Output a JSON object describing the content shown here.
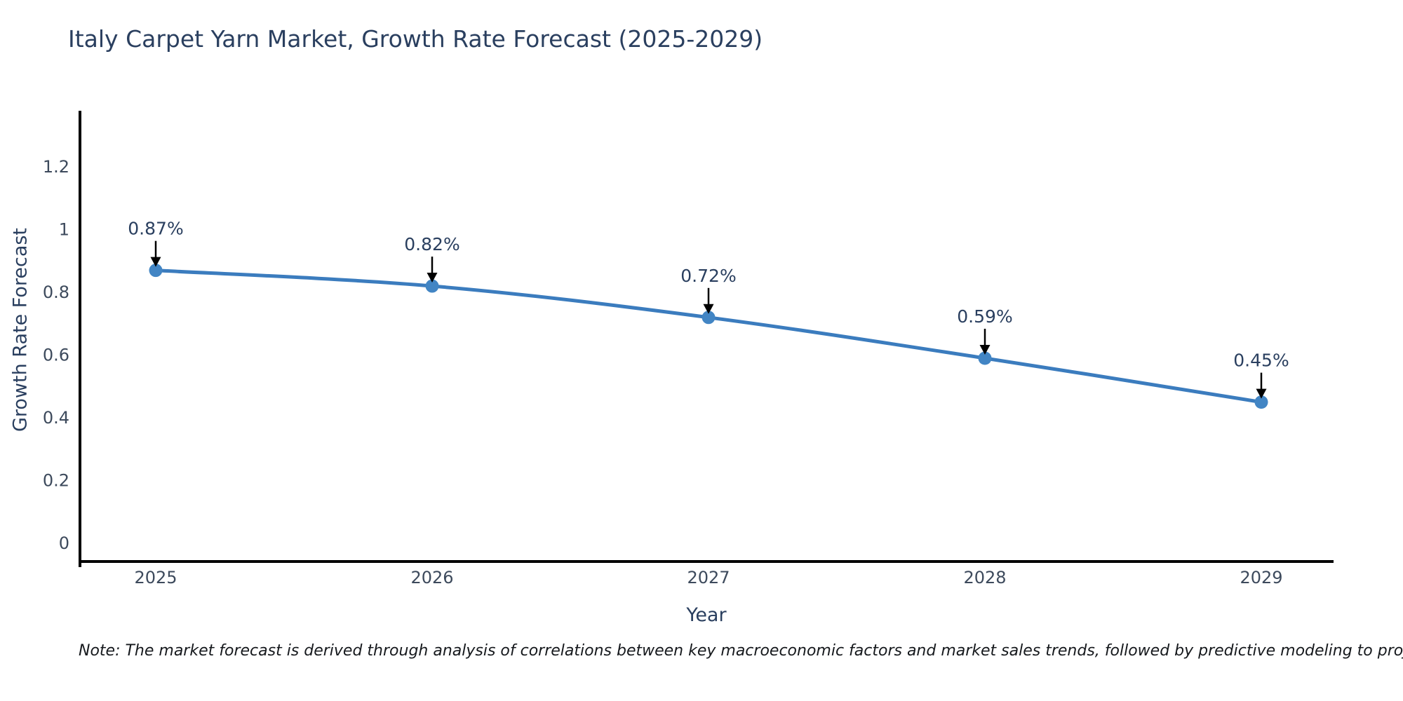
{
  "title": "Italy Carpet Yarn Market, Growth Rate Forecast (2025-2029)",
  "note": "Note: The market forecast is derived through analysis of correlations between key macroeconomic factors and market sales trends, followed by predictive modeling to project future sales",
  "chart_data": {
    "type": "line",
    "title": "Italy Carpet Yarn Market, Growth Rate Forecast (2025-2029)",
    "xlabel": "Year",
    "ylabel": "Growth Rate Forecast",
    "categories": [
      "2025",
      "2026",
      "2027",
      "2028",
      "2029"
    ],
    "series": [
      {
        "name": "Growth Rate Forecast",
        "values": [
          0.87,
          0.82,
          0.72,
          0.59,
          0.45
        ]
      }
    ],
    "point_labels": [
      "0.87%",
      "0.82%",
      "0.72%",
      "0.59%",
      "0.45%"
    ],
    "annotations_have_arrows": true,
    "yticks": {
      "values": [
        0,
        0.2,
        0.4,
        0.6,
        0.8,
        1.0,
        1.2
      ],
      "labels": [
        "0",
        "0.2",
        "0.4",
        "0.6",
        "0.8",
        "1",
        "1.2"
      ]
    },
    "ylim": [
      -0.06,
      1.37
    ],
    "grid": false,
    "legend": false,
    "colors": {
      "line": "#3b7cbe",
      "marker": "#4285c4",
      "arrow": "#000000",
      "spine": "#000000",
      "tick_label": "#3d4a5c",
      "annotation_text": "#2a3f5f",
      "title_text": "#2a3f5f"
    }
  }
}
